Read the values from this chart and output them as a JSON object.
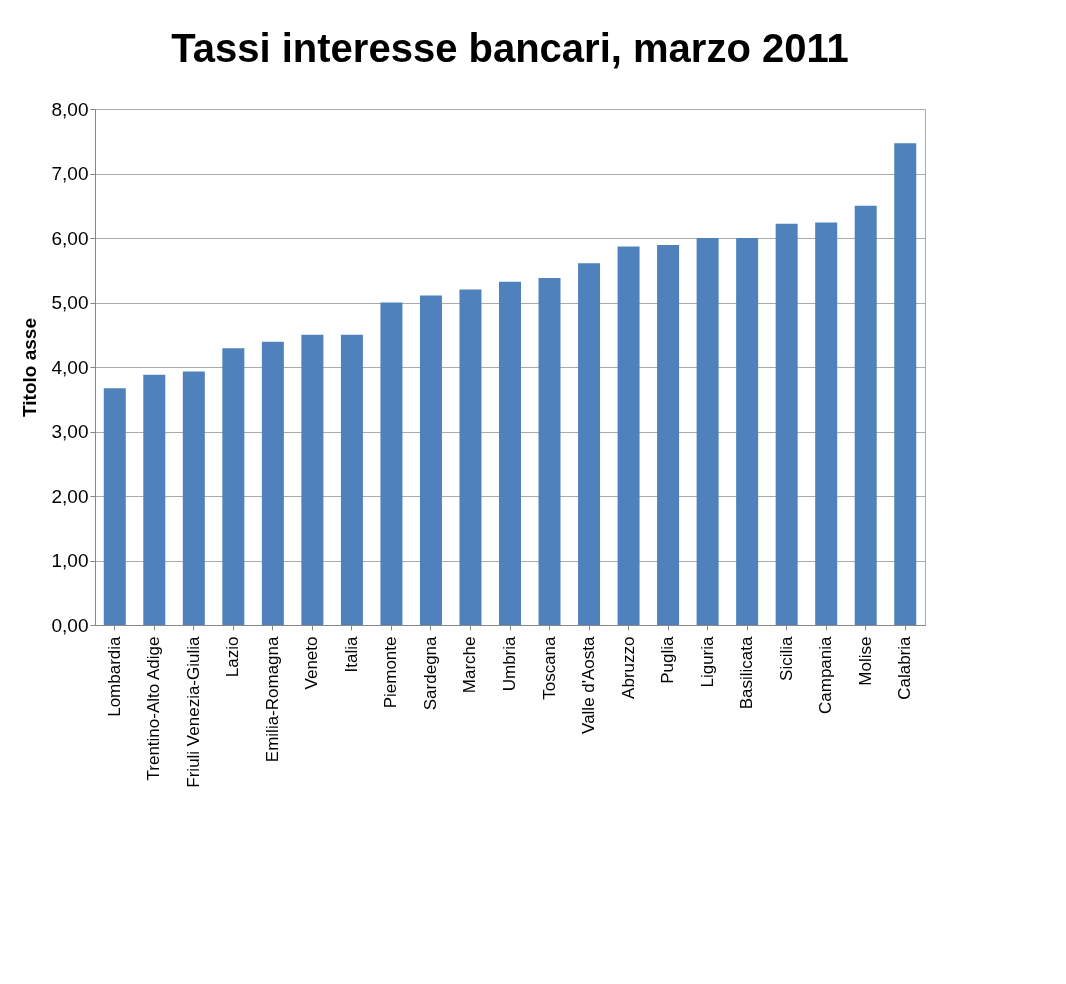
{
  "chart_data": {
    "type": "bar",
    "title": "Tassi interesse bancari, marzo 2011",
    "ylabel": "Titolo asse",
    "categories": [
      "Lombardia",
      "Trentino-Alto Adige",
      "Friuli Venezia-Giulia",
      "Lazio",
      "Emilia-Romagna",
      "Veneto",
      "Italia",
      "Piemonte",
      "Sardegna",
      "Marche",
      "Umbria",
      "Toscana",
      "Valle d'Aosta",
      "Abruzzo",
      "Puglia",
      "Liguria",
      "Basilicata",
      "Sicilia",
      "Campania",
      "Molise",
      "Calabria"
    ],
    "values": [
      3.67,
      3.88,
      3.93,
      4.29,
      4.39,
      4.5,
      4.5,
      5.0,
      5.11,
      5.2,
      5.32,
      5.38,
      5.61,
      5.87,
      5.89,
      6.0,
      6.0,
      6.22,
      6.24,
      6.5,
      7.47
    ],
    "color": "#4f81bd",
    "ylim": [
      0,
      8
    ],
    "yticks": [
      {
        "value": 0,
        "label": "0,00"
      },
      {
        "value": 1,
        "label": "1,00"
      },
      {
        "value": 2,
        "label": "2,00"
      },
      {
        "value": 3,
        "label": "3,00"
      },
      {
        "value": 4,
        "label": "4,00"
      },
      {
        "value": 5,
        "label": "5,00"
      },
      {
        "value": 6,
        "label": "6,00"
      },
      {
        "value": 7,
        "label": "7,00"
      },
      {
        "value": 8,
        "label": "8,00"
      }
    ],
    "grid": "y"
  }
}
